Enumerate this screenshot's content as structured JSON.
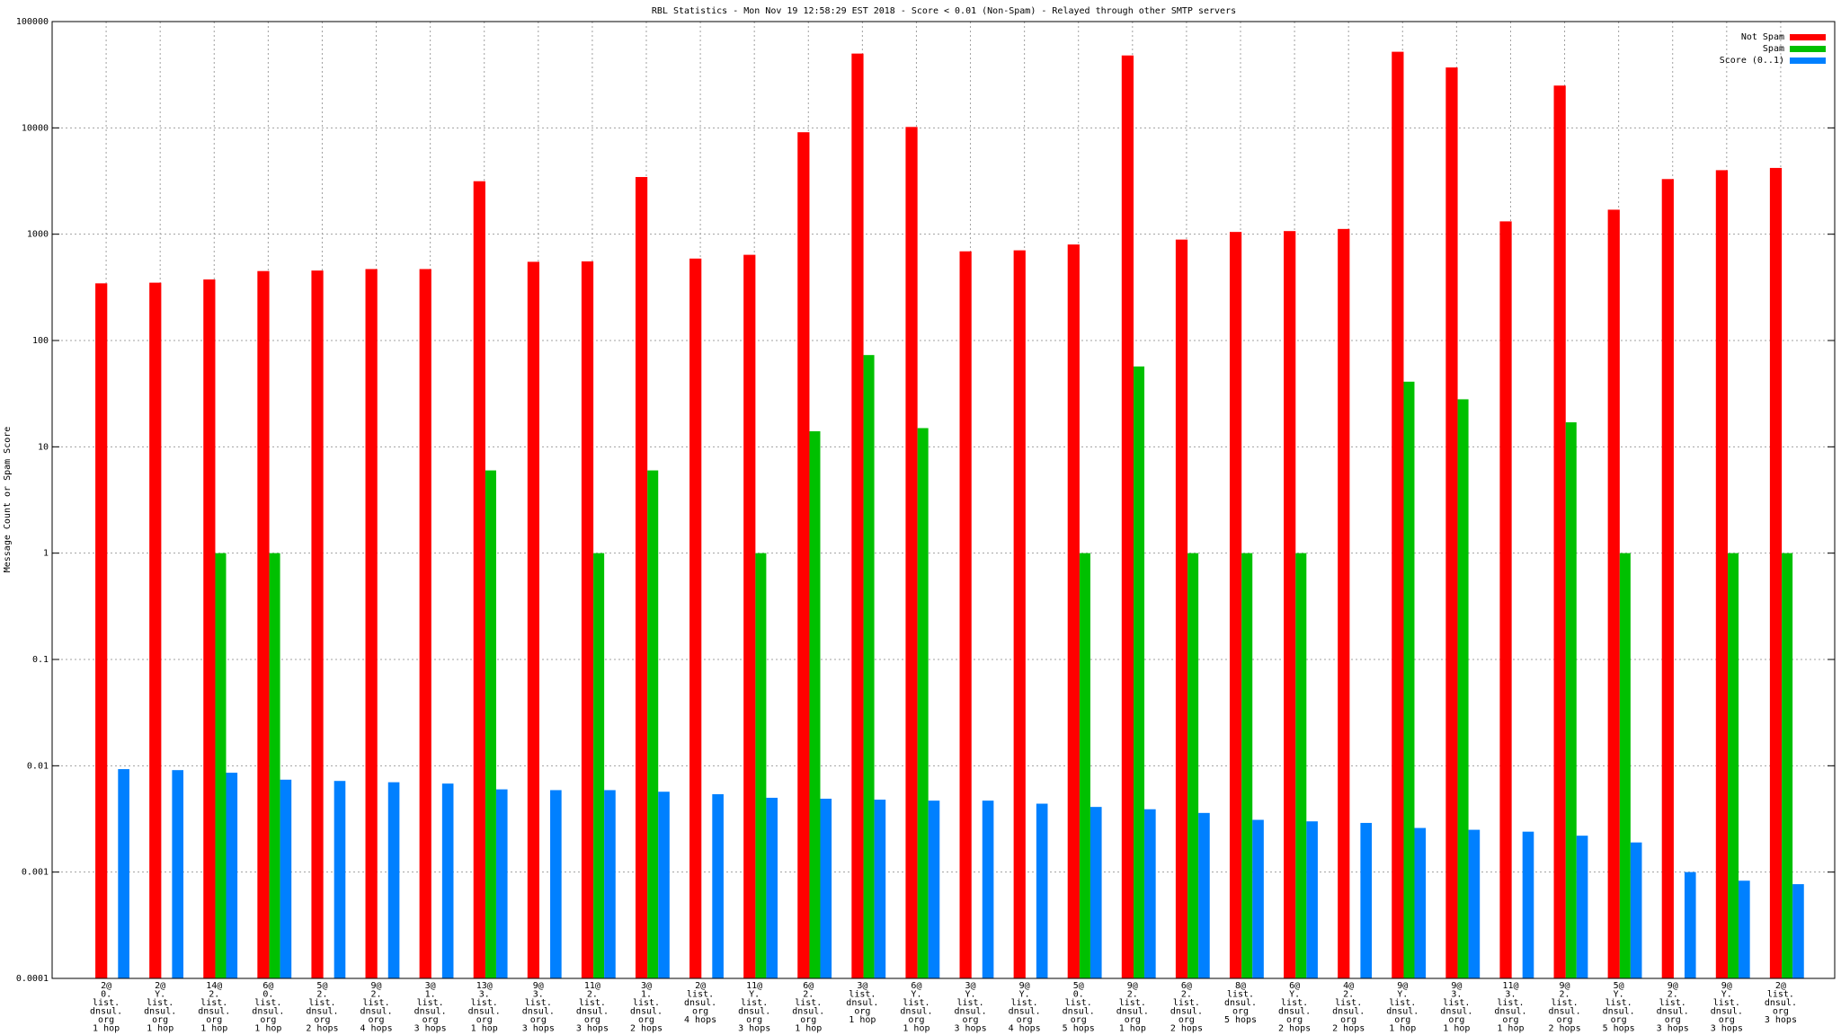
{
  "chart_data": {
    "type": "bar",
    "title": "RBL Statistics - Mon Nov 19 12:58:29 EST 2018 - Score < 0.01 (Non-Spam) - Relayed through other SMTP servers",
    "y_label": "Message Count or Spam Score",
    "log_scale": true,
    "grid": true,
    "legend": "top-right",
    "categories": [
      [
        "2@",
        "0.",
        "list.",
        "dnsul.",
        "org",
        "1 hop"
      ],
      [
        "2@",
        "Y.",
        "list.",
        "dnsul.",
        "org",
        "1 hop"
      ],
      [
        "14@",
        "2.",
        "list.",
        "dnsul.",
        "org",
        "1 hop"
      ],
      [
        "6@",
        "0.",
        "list.",
        "dnsul.",
        "org",
        "1 hop"
      ],
      [
        "5@",
        "2.",
        "list.",
        "dnsul.",
        "org",
        "2 hops"
      ],
      [
        "9@",
        "2.",
        "list.",
        "dnsul.",
        "org",
        "4 hops"
      ],
      [
        "3@",
        "1.",
        "list.",
        "dnsul.",
        "org",
        "3 hops"
      ],
      [
        "13@",
        "3.",
        "list.",
        "dnsul.",
        "org",
        "1 hop"
      ],
      [
        "9@",
        "3.",
        "list.",
        "dnsul.",
        "org",
        "3 hops"
      ],
      [
        "11@",
        "2.",
        "list.",
        "dnsul.",
        "org",
        "3 hops"
      ],
      [
        "3@",
        "1.",
        "list.",
        "dnsul.",
        "org",
        "2 hops"
      ],
      [
        "2@",
        "list.",
        "dnsul.",
        "org",
        "4 hops"
      ],
      [
        "11@",
        "Y.",
        "list.",
        "dnsul.",
        "org",
        "3 hops"
      ],
      [
        "6@",
        "2.",
        "list.",
        "dnsul.",
        "org",
        "1 hop"
      ],
      [
        "3@",
        "list.",
        "dnsul.",
        "org",
        "1 hop"
      ],
      [
        "6@",
        "Y.",
        "list.",
        "dnsul.",
        "org",
        "1 hop"
      ],
      [
        "3@",
        "Y.",
        "list.",
        "dnsul.",
        "org",
        "3 hops"
      ],
      [
        "9@",
        "Y.",
        "list.",
        "dnsul.",
        "org",
        "4 hops"
      ],
      [
        "5@",
        "0.",
        "list.",
        "dnsul.",
        "org",
        "5 hops"
      ],
      [
        "9@",
        "2.",
        "list.",
        "dnsul.",
        "org",
        "1 hop"
      ],
      [
        "6@",
        "2.",
        "list.",
        "dnsul.",
        "org",
        "2 hops"
      ],
      [
        "8@",
        "list.",
        "dnsul.",
        "org",
        "5 hops"
      ],
      [
        "6@",
        "Y.",
        "list.",
        "dnsul.",
        "org",
        "2 hops"
      ],
      [
        "4@",
        "2.",
        "list.",
        "dnsul.",
        "org",
        "2 hops"
      ],
      [
        "9@",
        "Y.",
        "list.",
        "dnsul.",
        "org",
        "1 hop"
      ],
      [
        "9@",
        "3.",
        "list.",
        "dnsul.",
        "org",
        "1 hop"
      ],
      [
        "11@",
        "3.",
        "list.",
        "dnsul.",
        "org",
        "1 hop"
      ],
      [
        "9@",
        "2.",
        "list.",
        "dnsul.",
        "org",
        "2 hops"
      ],
      [
        "5@",
        "Y.",
        "list.",
        "dnsul.",
        "org",
        "5 hops"
      ],
      [
        "9@",
        "2.",
        "list.",
        "dnsul.",
        "org",
        "3 hops"
      ],
      [
        "9@",
        "Y.",
        "list.",
        "dnsul.",
        "org",
        "3 hops"
      ],
      [
        "2@",
        "list.",
        "dnsul.",
        "org",
        "3 hops"
      ]
    ],
    "series": [
      {
        "name": "Not Spam",
        "color": "#ff0000",
        "values": [
          345,
          350,
          375,
          450,
          455,
          470,
          470,
          3150,
          550,
          555,
          3450,
          590,
          640,
          9100,
          50000,
          10200,
          690,
          705,
          800,
          48000,
          890,
          1050,
          1070,
          1120,
          52000,
          37000,
          1320,
          25000,
          1700,
          3300,
          4000,
          4200
        ]
      },
      {
        "name": "Spam",
        "color": "#00c000",
        "values": [
          null,
          null,
          1,
          1,
          null,
          null,
          null,
          6,
          null,
          1,
          6,
          null,
          1,
          14,
          73,
          15,
          null,
          null,
          1,
          57,
          1,
          1,
          1,
          null,
          41,
          28,
          null,
          17,
          1,
          null,
          1,
          1
        ]
      },
      {
        "name": "Score (0..1)",
        "color": "#0080ff",
        "values": [
          0.0093,
          0.0091,
          0.0086,
          0.0074,
          0.0072,
          0.007,
          0.0068,
          0.006,
          0.0059,
          0.0059,
          0.0057,
          0.0054,
          0.005,
          0.0049,
          0.0048,
          0.0047,
          0.0047,
          0.0044,
          0.0041,
          0.0039,
          0.0036,
          0.0031,
          0.003,
          0.0029,
          0.0026,
          0.0025,
          0.0024,
          0.0022,
          0.0019,
          0.001,
          0.00083,
          0.00077
        ]
      }
    ],
    "ylim": [
      0.0001,
      100000
    ],
    "yticks": [
      0.0001,
      0.001,
      0.01,
      0.1,
      1,
      10,
      100,
      1000,
      10000,
      100000
    ]
  }
}
